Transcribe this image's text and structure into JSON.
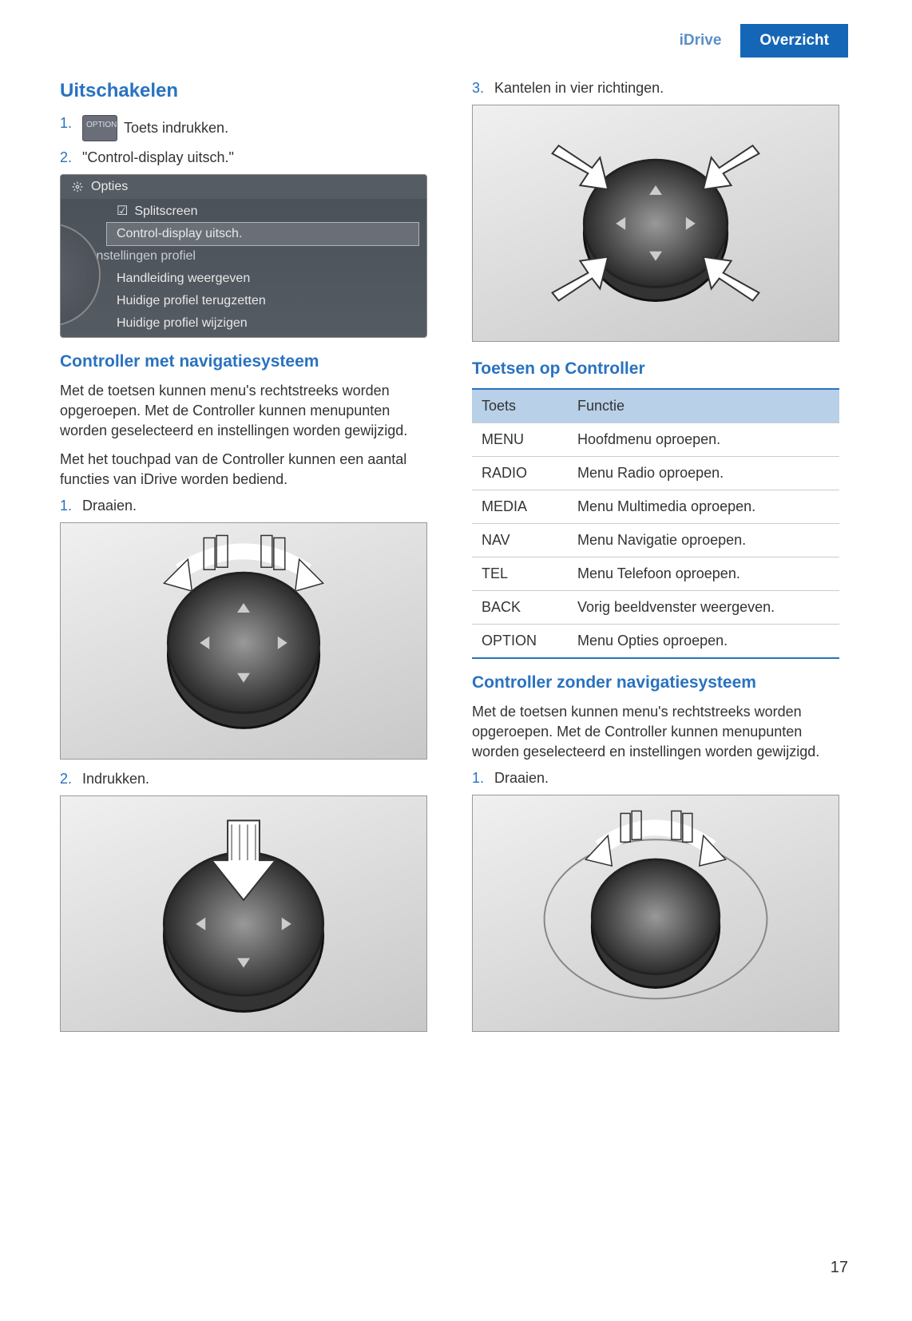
{
  "header": {
    "tab_inactive": "iDrive",
    "tab_active": "Overzicht"
  },
  "left_col": {
    "h_uitschakelen": "Uitschakelen",
    "step1_num": "1.",
    "step1_btn": "OPTION",
    "step1_text": "Toets indrukken.",
    "step2_num": "2.",
    "step2_text": "\"Control-display uitsch.\"",
    "screenshot": {
      "title": "Opties",
      "line1": "Splitscreen",
      "line2": "Control-display uitsch.",
      "line3": "Instellingen profiel",
      "line4": "Handleiding weergeven",
      "line5": "Huidige profiel terugzetten",
      "line6": "Huidige profiel wijzigen"
    },
    "h_controller_nav": "Controller met navigatiesysteem",
    "p_nav1": "Met de toetsen kunnen menu's rechtstreeks worden opgeroepen. Met de Controller kunnen menupunten worden geselecteerd en instellingen worden gewijzigd.",
    "p_nav2": "Met het touchpad van de Controller kunnen een aantal functies van iDrive worden bediend.",
    "nav_step1_num": "1.",
    "nav_step1_text": "Draaien.",
    "nav_step2_num": "2.",
    "nav_step2_text": "Indrukken."
  },
  "right_col": {
    "step3_num": "3.",
    "step3_text": "Kantelen in vier richtingen.",
    "h_toetsen": "Toetsen op Controller",
    "table": {
      "header_left": "Toets",
      "header_right": "Functie",
      "rows": [
        {
          "key": "MENU",
          "func": "Hoofdmenu oproepen."
        },
        {
          "key": "RADIO",
          "func": "Menu Radio oproepen."
        },
        {
          "key": "MEDIA",
          "func": "Menu Multimedia oproepen."
        },
        {
          "key": "NAV",
          "func": "Menu Navigatie oproepen."
        },
        {
          "key": "TEL",
          "func": "Menu Telefoon oproepen."
        },
        {
          "key": "BACK",
          "func": "Vorig beeldvenster weergeven."
        },
        {
          "key": "OPTION",
          "func": "Menu Opties oproepen."
        }
      ]
    },
    "h_nonav": "Controller zonder navigatiesysteem",
    "p_nonav": "Met de toetsen kunnen menu's rechtstreeks worden opgeroepen. Met de Controller kunnen menupunten worden geselecteerd en instellingen worden gewijzigd.",
    "nonav_step1_num": "1.",
    "nonav_step1_text": "Draaien."
  },
  "page_number": "17",
  "colors": {
    "blue_accent": "#2972c0",
    "tab_bg": "#1666b8",
    "table_header_bg": "#b8d0e8"
  }
}
